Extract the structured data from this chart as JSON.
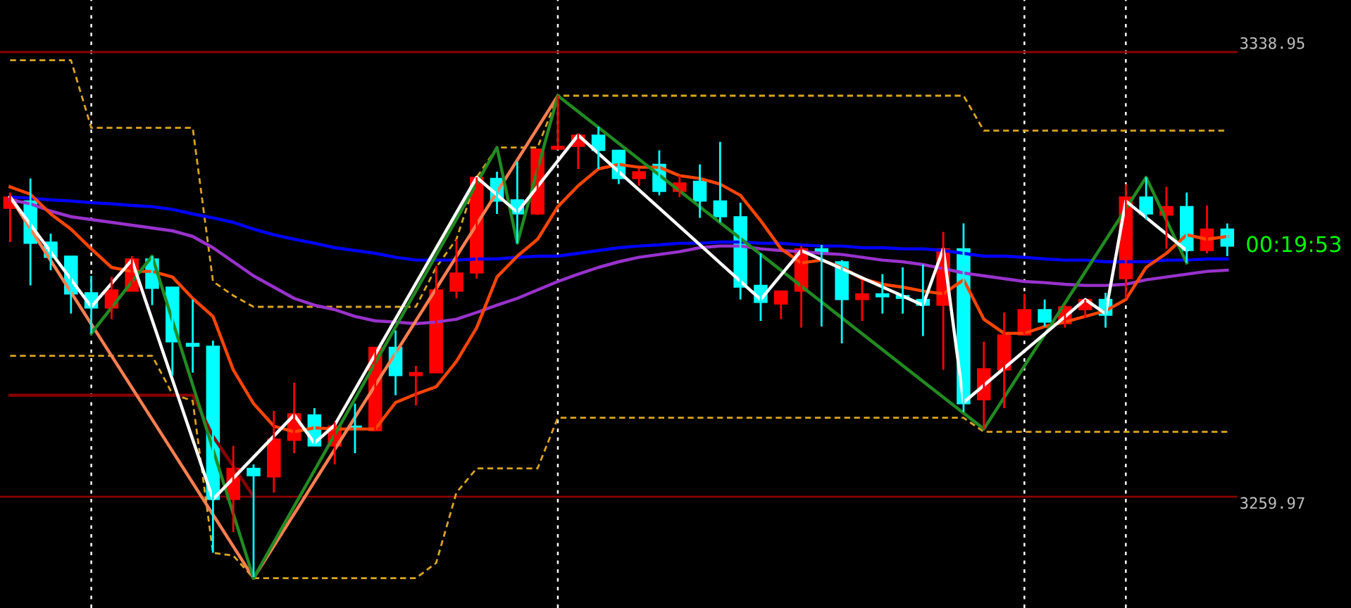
{
  "chart_data": {
    "type": "candlestick",
    "categories": [
      null,
      null,
      null,
      null,
      null,
      null,
      null,
      null,
      null,
      null,
      null,
      null,
      null,
      null,
      null,
      null,
      null,
      null,
      null,
      null,
      null,
      null,
      null,
      null,
      null,
      null,
      null,
      null,
      null,
      null,
      null,
      null,
      null,
      null,
      null,
      null,
      null,
      null,
      null,
      null,
      null,
      null,
      null,
      null,
      null,
      null,
      null,
      null,
      null,
      null,
      null,
      null,
      null,
      null,
      null,
      null,
      null,
      null,
      null,
      null,
      null
    ],
    "ohlc": [
      [
        3311.2,
        3314.0,
        3305.2,
        3313.2
      ],
      [
        3312.5,
        3316.5,
        3297.5,
        3305.0
      ],
      [
        3305.2,
        3306.7,
        3300.2,
        3302.5
      ],
      [
        3302.7,
        3302.7,
        3292.5,
        3296.0
      ],
      [
        3296.2,
        3299.2,
        3289.0,
        3293.5
      ],
      [
        3293.5,
        3299.0,
        3291.5,
        3296.7
      ],
      [
        3296.5,
        3302.7,
        3296.5,
        3302.2
      ],
      [
        3302.2,
        3302.7,
        3294.0,
        3297.0
      ],
      [
        3297.2,
        3297.2,
        3281.5,
        3287.5
      ],
      [
        3287.2,
        3295.0,
        3282.0,
        3286.7
      ],
      [
        3286.7,
        3287.7,
        3250.0,
        3259.5
      ],
      [
        3259.5,
        3269.0,
        3253.7,
        3265.0
      ],
      [
        3265.0,
        3265.7,
        3245.7,
        3263.7
      ],
      [
        3263.5,
        3275.2,
        3260.7,
        3270.2
      ],
      [
        3270.0,
        3280.2,
        3267.7,
        3274.7
      ],
      [
        3274.5,
        3275.7,
        3269.0,
        3269.0
      ],
      [
        3269.0,
        3273.2,
        3265.7,
        3272.5
      ],
      [
        3272.5,
        3276.5,
        3267.7,
        3272.0
      ],
      [
        3271.7,
        3286.5,
        3271.7,
        3286.5
      ],
      [
        3286.5,
        3289.5,
        3278.0,
        3281.5
      ],
      [
        3281.5,
        3283.2,
        3276.2,
        3282.0
      ],
      [
        3282.0,
        3301.0,
        3282.0,
        3296.7
      ],
      [
        3296.5,
        3305.7,
        3295.2,
        3299.7
      ],
      [
        3299.7,
        3316.7,
        3298.7,
        3316.7
      ],
      [
        3316.5,
        3317.7,
        3310.2,
        3312.5
      ],
      [
        3312.7,
        3319.5,
        3305.0,
        3310.2
      ],
      [
        3310.2,
        3321.7,
        3310.0,
        3321.7
      ],
      [
        3321.7,
        3331.2,
        3321.7,
        3322.2
      ],
      [
        3322.2,
        3324.5,
        3318.2,
        3324.2
      ],
      [
        3324.2,
        3325.7,
        3318.2,
        3321.5
      ],
      [
        3321.5,
        3321.5,
        3315.5,
        3316.5
      ],
      [
        3316.5,
        3318.2,
        3315.2,
        3317.7
      ],
      [
        3319.0,
        3321.5,
        3313.5,
        3314.2
      ],
      [
        3314.2,
        3317.0,
        3313.2,
        3315.7
      ],
      [
        3316.0,
        3319.0,
        3309.5,
        3312.5
      ],
      [
        3312.5,
        3323.0,
        3308.7,
        3309.7
      ],
      [
        3309.7,
        3312.2,
        3295.0,
        3297.2
      ],
      [
        3297.5,
        3303.2,
        3291.2,
        3294.5
      ],
      [
        3294.2,
        3296.5,
        3291.5,
        3296.5
      ],
      [
        3296.5,
        3304.5,
        3290.0,
        3304.0
      ],
      [
        3304.0,
        3304.7,
        3290.2,
        3303.2
      ],
      [
        3301.7,
        3302.0,
        3287.2,
        3295.0
      ],
      [
        3295.0,
        3298.5,
        3291.2,
        3296.0
      ],
      [
        3296.0,
        3299.5,
        3292.5,
        3295.5
      ],
      [
        3295.7,
        3300.7,
        3292.5,
        3295.2
      ],
      [
        3295.0,
        3301.2,
        3288.5,
        3294.0
      ],
      [
        3294.0,
        3307.0,
        3282.5,
        3304.0
      ],
      [
        3304.0,
        3308.5,
        3275.0,
        3276.5
      ],
      [
        3277.2,
        3287.5,
        3272.0,
        3282.7
      ],
      [
        3282.5,
        3292.7,
        3275.7,
        3288.7
      ],
      [
        3288.7,
        3296.0,
        3288.7,
        3293.2
      ],
      [
        3293.2,
        3295.0,
        3290.2,
        3291.0
      ],
      [
        3290.7,
        3294.0,
        3290.0,
        3293.7
      ],
      [
        3293.2,
        3295.0,
        3291.7,
        3295.0
      ],
      [
        3295.0,
        3296.2,
        3290.0,
        3292.2
      ],
      [
        3298.7,
        3315.5,
        3295.2,
        3313.2
      ],
      [
        3313.2,
        3316.7,
        3309.2,
        3310.2
      ],
      [
        3310.0,
        3315.0,
        3304.0,
        3311.5
      ],
      [
        3311.5,
        3314.0,
        3301.5,
        3303.7
      ],
      [
        3303.7,
        3311.7,
        3303.2,
        3307.5
      ],
      [
        3307.5,
        3308.5,
        3302.7,
        3304.5
      ]
    ],
    "colors": [
      "#ff0000",
      "#00ffff",
      "#00ffff",
      "#00ffff",
      "#00ffff",
      "#ff0000",
      "#ff0000",
      "#00ffff",
      "#00ffff",
      "#00ffff",
      "#00ffff",
      "#ff0000",
      "#00ffff",
      "#ff0000",
      "#ff0000",
      "#00ffff",
      "#ff0000",
      "#00ffff",
      "#ff0000",
      "#00ffff",
      "#ff0000",
      "#ff0000",
      "#ff0000",
      "#ff0000",
      "#00ffff",
      "#00ffff",
      "#ff0000",
      "#ff0000",
      "#ff0000",
      "#00ffff",
      "#00ffff",
      "#ff0000",
      "#00ffff",
      "#ff0000",
      "#00ffff",
      "#00ffff",
      "#00ffff",
      "#00ffff",
      "#ff0000",
      "#ff0000",
      "#00ffff",
      "#00ffff",
      "#ff0000",
      "#00ffff",
      "#00ffff",
      "#00ffff",
      "#ff0000",
      "#00ffff",
      "#ff0000",
      "#ff0000",
      "#ff0000",
      "#00ffff",
      "#ff0000",
      "#ff0000",
      "#00ffff",
      "#ff0000",
      "#00ffff",
      "#ff0000",
      "#00ffff",
      "#ff0000",
      "#00ffff"
    ],
    "series": [
      {
        "type": "line",
        "color": "#daa520",
        "line_style": "dashed",
        "values": [
          3337.5,
          3337.5,
          3337.5,
          3337.5,
          3325.5,
          3325.5,
          3325.5,
          3325.5,
          3325.5,
          3325.5,
          3298.2,
          3295.7,
          3293.7,
          3293.7,
          3293.7,
          3293.7,
          3293.7,
          3293.7,
          3293.7,
          3293.7,
          3293.7,
          3300.7,
          3305.7,
          3316.7,
          3322.0,
          3322.0,
          3322.0,
          3331.2,
          3331.2,
          3331.2,
          3331.2,
          3331.2,
          3331.2,
          3331.2,
          3331.2,
          3331.2,
          3331.2,
          3331.2,
          3331.2,
          3331.2,
          3331.2,
          3331.2,
          3331.2,
          3331.2,
          3331.2,
          3331.2,
          3331.2,
          3331.2,
          3325.0,
          3325.0,
          3325.0,
          3325.0,
          3325.0,
          3325.0,
          3325.0,
          3325.0,
          3325.0,
          3325.0,
          3325.0,
          3325.0,
          3325.0
        ]
      },
      {
        "type": "line",
        "color": "#daa520",
        "line_style": "dashed",
        "values": [
          3285.0,
          3285.0,
          3285.0,
          3285.0,
          3285.0,
          3285.0,
          3285.0,
          3285.0,
          3278.2,
          3277.0,
          3250.0,
          3249.5,
          3245.5,
          3245.5,
          3245.5,
          3245.5,
          3245.5,
          3245.5,
          3245.5,
          3245.5,
          3245.5,
          3248.2,
          3260.7,
          3265.0,
          3265.0,
          3265.0,
          3265.0,
          3274.0,
          3274.0,
          3274.0,
          3274.0,
          3274.0,
          3274.0,
          3274.0,
          3274.0,
          3274.0,
          3274.0,
          3274.0,
          3274.0,
          3274.0,
          3274.0,
          3274.0,
          3274.0,
          3274.0,
          3274.0,
          3274.0,
          3274.0,
          3274.0,
          3271.5,
          3271.5,
          3271.5,
          3271.5,
          3271.5,
          3271.5,
          3271.5,
          3271.5,
          3271.5,
          3271.5,
          3271.5,
          3271.5,
          3271.5
        ]
      },
      {
        "type": "line",
        "color": "#8b0000",
        "line_style": "solid",
        "values": [
          3278.0,
          3278.0,
          3278.0,
          3278.0,
          3278.0,
          3278.0,
          3278.0,
          3278.0,
          3278.0,
          3278.0,
          3270.7,
          null,
          3260.0,
          null,
          null,
          null,
          null,
          null,
          null,
          null,
          null,
          null,
          null,
          null,
          null,
          null,
          null,
          null,
          null,
          null,
          null,
          null,
          null,
          null,
          null,
          null,
          null,
          null,
          null,
          null,
          null,
          null,
          null,
          null,
          null,
          null,
          null,
          null,
          null,
          null,
          null,
          null,
          null,
          null,
          null,
          null,
          null,
          null,
          null,
          null,
          null
        ]
      },
      {
        "type": "line",
        "color": "#0000ff",
        "line_style": "solid",
        "values": [
          3313.2,
          3313.0,
          3312.7,
          3312.5,
          3312.2,
          3312.0,
          3311.7,
          3311.5,
          3311.0,
          3310.2,
          3309.5,
          3308.7,
          3307.5,
          3306.5,
          3305.7,
          3305.0,
          3304.2,
          3303.7,
          3303.2,
          3302.5,
          3302.0,
          3302.0,
          3302.0,
          3302.2,
          3302.2,
          3302.5,
          3302.7,
          3302.7,
          3303.2,
          3303.7,
          3304.2,
          3304.5,
          3304.7,
          3305.0,
          3305.0,
          3305.2,
          3305.2,
          3305.0,
          3305.0,
          3304.7,
          3304.5,
          3304.5,
          3304.2,
          3304.2,
          3304.0,
          3304.0,
          3303.7,
          3303.2,
          3302.7,
          3302.7,
          3302.5,
          3302.2,
          3302.0,
          3302.0,
          3301.7,
          3301.7,
          3301.7,
          3302.0,
          3302.0,
          3302.2,
          3302.2
        ]
      },
      {
        "type": "line",
        "color": "#9932cc",
        "line_style": "solid",
        "values": [
          3312.7,
          3312.0,
          3310.7,
          3309.7,
          3309.2,
          3308.7,
          3308.2,
          3307.7,
          3307.2,
          3306.2,
          3304.2,
          3301.7,
          3299.2,
          3297.2,
          3295.2,
          3294.0,
          3293.2,
          3292.0,
          3291.2,
          3291.0,
          3290.7,
          3291.0,
          3291.5,
          3292.7,
          3294.0,
          3295.2,
          3296.7,
          3298.2,
          3299.5,
          3300.7,
          3301.7,
          3302.5,
          3303.0,
          3303.5,
          3304.2,
          3304.5,
          3304.5,
          3304.0,
          3303.7,
          3303.5,
          3303.2,
          3303.0,
          3302.5,
          3302.0,
          3301.7,
          3301.2,
          3300.5,
          3299.7,
          3299.2,
          3298.7,
          3298.2,
          3298.0,
          3297.7,
          3297.5,
          3297.5,
          3297.7,
          3298.5,
          3299.0,
          3299.5,
          3300.0,
          3300.2
        ]
      },
      {
        "type": "line",
        "color": "#ff4500",
        "line_style": "solid",
        "values": [
          3315.0,
          3313.7,
          3310.2,
          3307.5,
          3304.0,
          3300.7,
          3300.0,
          3300.0,
          3299.0,
          3295.2,
          3292.0,
          3282.5,
          3276.5,
          3272.5,
          3271.5,
          3272.2,
          3272.0,
          3272.0,
          3272.0,
          3276.7,
          3278.2,
          3279.5,
          3284.0,
          3290.0,
          3299.0,
          3302.7,
          3305.7,
          3311.5,
          3315.2,
          3318.2,
          3319.0,
          3318.5,
          3318.5,
          3317.0,
          3316.5,
          3315.5,
          3313.5,
          3309.0,
          3304.0,
          3301.5,
          3302.0,
          3300.7,
          3298.7,
          3297.7,
          3297.2,
          3296.5,
          3296.0,
          3298.5,
          3291.5,
          3289.0,
          3289.0,
          3290.2,
          3291.0,
          3292.0,
          3293.0,
          3295.0,
          3300.7,
          3303.2,
          3306.5,
          3305.7,
          3306.2
        ]
      },
      {
        "type": "line",
        "color": "#ff7f50",
        "line_style": "solid",
        "values": [
          3313.2,
          null,
          null,
          null,
          null,
          null,
          null,
          null,
          null,
          null,
          null,
          null,
          3245.5,
          null,
          null,
          null,
          null,
          null,
          null,
          null,
          null,
          null,
          null,
          null,
          null,
          null,
          null,
          3331.2,
          null,
          null,
          null,
          null,
          null,
          null,
          null,
          null,
          null,
          null,
          null,
          null,
          null,
          null,
          null,
          null,
          null,
          null,
          null,
          null,
          null,
          null,
          null,
          null,
          null,
          null,
          null,
          null,
          null,
          null,
          null,
          null,
          null
        ]
      },
      {
        "type": "line",
        "color": "#228b22",
        "line_style": "solid",
        "values": [
          null,
          null,
          null,
          null,
          3289.0,
          null,
          null,
          3302.7,
          null,
          null,
          null,
          null,
          3245.5,
          null,
          null,
          null,
          null,
          null,
          null,
          null,
          null,
          null,
          null,
          null,
          3322.0,
          3305.0,
          null,
          3331.2,
          null,
          null,
          null,
          null,
          null,
          null,
          null,
          null,
          null,
          null,
          null,
          null,
          null,
          null,
          null,
          null,
          null,
          null,
          null,
          null,
          3272.0,
          null,
          null,
          null,
          null,
          null,
          null,
          null,
          3316.7,
          null,
          3301.5,
          null,
          null
        ]
      },
      {
        "type": "line",
        "color": "#ffffff",
        "line_style": "solid",
        "values": [
          3313.2,
          null,
          null,
          null,
          3293.7,
          null,
          3302.0,
          null,
          null,
          null,
          3259.5,
          null,
          null,
          null,
          3274.5,
          3269.5,
          3272.7,
          null,
          null,
          null,
          null,
          null,
          null,
          3316.7,
          null,
          3310.5,
          null,
          null,
          3324.2,
          null,
          null,
          null,
          null,
          null,
          null,
          null,
          null,
          3295.0,
          null,
          3303.7,
          null,
          null,
          null,
          null,
          null,
          3294.0,
          3304.0,
          3276.7,
          null,
          null,
          null,
          null,
          null,
          3295.0,
          3292.5,
          3312.5,
          null,
          null,
          3303.7,
          null,
          null
        ]
      }
    ],
    "ylim": [
      3240.2,
      3348.2
    ],
    "ref_lines": [
      {
        "axis": "y",
        "value": 3338.95,
        "label": "3338.95",
        "color": "#8b0000",
        "line_style": "solid"
      },
      {
        "axis": "y",
        "value": 3259.97,
        "label": "3259.97",
        "color": "#8b0000",
        "line_style": "solid"
      }
    ],
    "grid": "x",
    "annotations": [
      "00:19:53"
    ]
  }
}
